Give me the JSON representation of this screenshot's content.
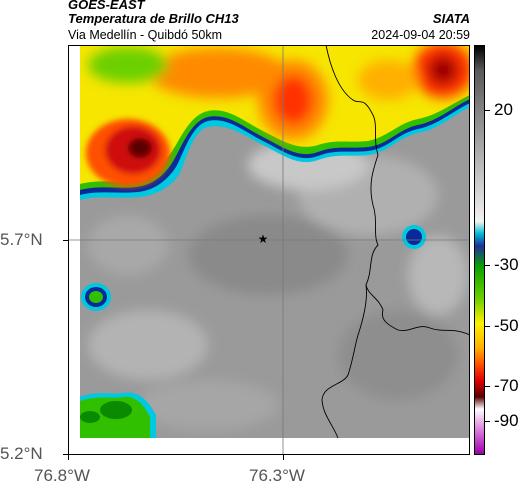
{
  "header": {
    "title_line1": "GOES-EAST",
    "title_line2": "Temperatura de Brillo CH13",
    "route": "Via Medellín - Quibdó 50km",
    "source": "SIATA",
    "datetime": "2024-09-04 20:59"
  },
  "axes": {
    "y_labels": [
      "5.7°N",
      "5.2°N"
    ],
    "x_labels": [
      "76.8°W",
      "76.3°W"
    ]
  },
  "colorbar": {
    "labels": [
      "20",
      "-30",
      "-50",
      "-70",
      "-90"
    ],
    "stops": [
      "#000000",
      "#5a5a5a",
      "#bdbdbd",
      "#f2f2f2",
      "#00bcd4",
      "#1e2f9e",
      "#0aa000",
      "#6cd000",
      "#fff000",
      "#ffb000",
      "#ff5000",
      "#e00000",
      "#5a0000",
      "#ffffff",
      "#dd7fdd",
      "#9900aa"
    ]
  },
  "palette": {
    "cold_red": "#d01010",
    "warm_orange": "#ff8a00",
    "yellow": "#f6e600",
    "green": "#30c000",
    "blue_edge": "#0a2a9a",
    "cyan_edge": "#00c8e0",
    "cloud_free_gray": "#9a9a9a",
    "border_line": "#000000"
  },
  "marker": {
    "symbol": "★"
  }
}
